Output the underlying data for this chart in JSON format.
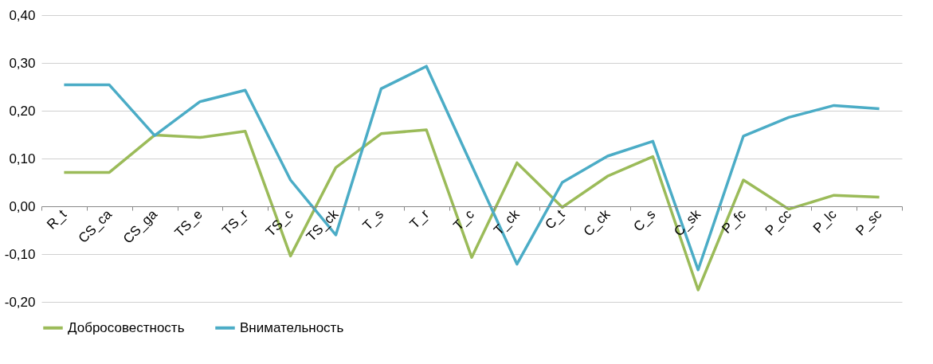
{
  "chart_data": {
    "type": "line",
    "categories": [
      "R_t",
      "CS_ca",
      "CS_ga",
      "TS_e",
      "TS_r",
      "TS_c",
      "TS_ck",
      "T_s",
      "T_r",
      "T_c",
      "T_ck",
      "C_t",
      "C_ck",
      "C_s",
      "C_sk",
      "P_fc",
      "P_cc",
      "P_lc",
      "P_sc"
    ],
    "series": [
      {
        "name": "Добросовестность",
        "color": "#9bbb59",
        "values": [
          0.071,
          0.071,
          0.149,
          0.144,
          0.157,
          -0.104,
          0.081,
          0.152,
          0.16,
          -0.107,
          0.091,
          -0.002,
          0.063,
          0.104,
          -0.175,
          0.055,
          -0.006,
          0.023,
          0.019
        ]
      },
      {
        "name": "Внимательность",
        "color": "#4bacc6",
        "values": [
          0.254,
          0.254,
          0.148,
          0.219,
          0.243,
          0.055,
          -0.06,
          0.246,
          0.293,
          0.086,
          -0.121,
          0.05,
          0.105,
          0.136,
          -0.133,
          0.147,
          0.186,
          0.211,
          0.204
        ]
      }
    ],
    "ylim": [
      -0.2,
      0.4
    ],
    "yticks": [
      {
        "value": -0.2,
        "label": "-0,20"
      },
      {
        "value": -0.1,
        "label": "-0,10"
      },
      {
        "value": 0,
        "label": "0,00"
      },
      {
        "value": 0.1,
        "label": "0,10"
      },
      {
        "value": 0.2,
        "label": "0,20"
      },
      {
        "value": 0.3,
        "label": "0,30"
      },
      {
        "value": 0.4,
        "label": "0,40"
      }
    ],
    "grid": "y",
    "legend": "bottom",
    "marker": "none",
    "line_style": "solid"
  }
}
